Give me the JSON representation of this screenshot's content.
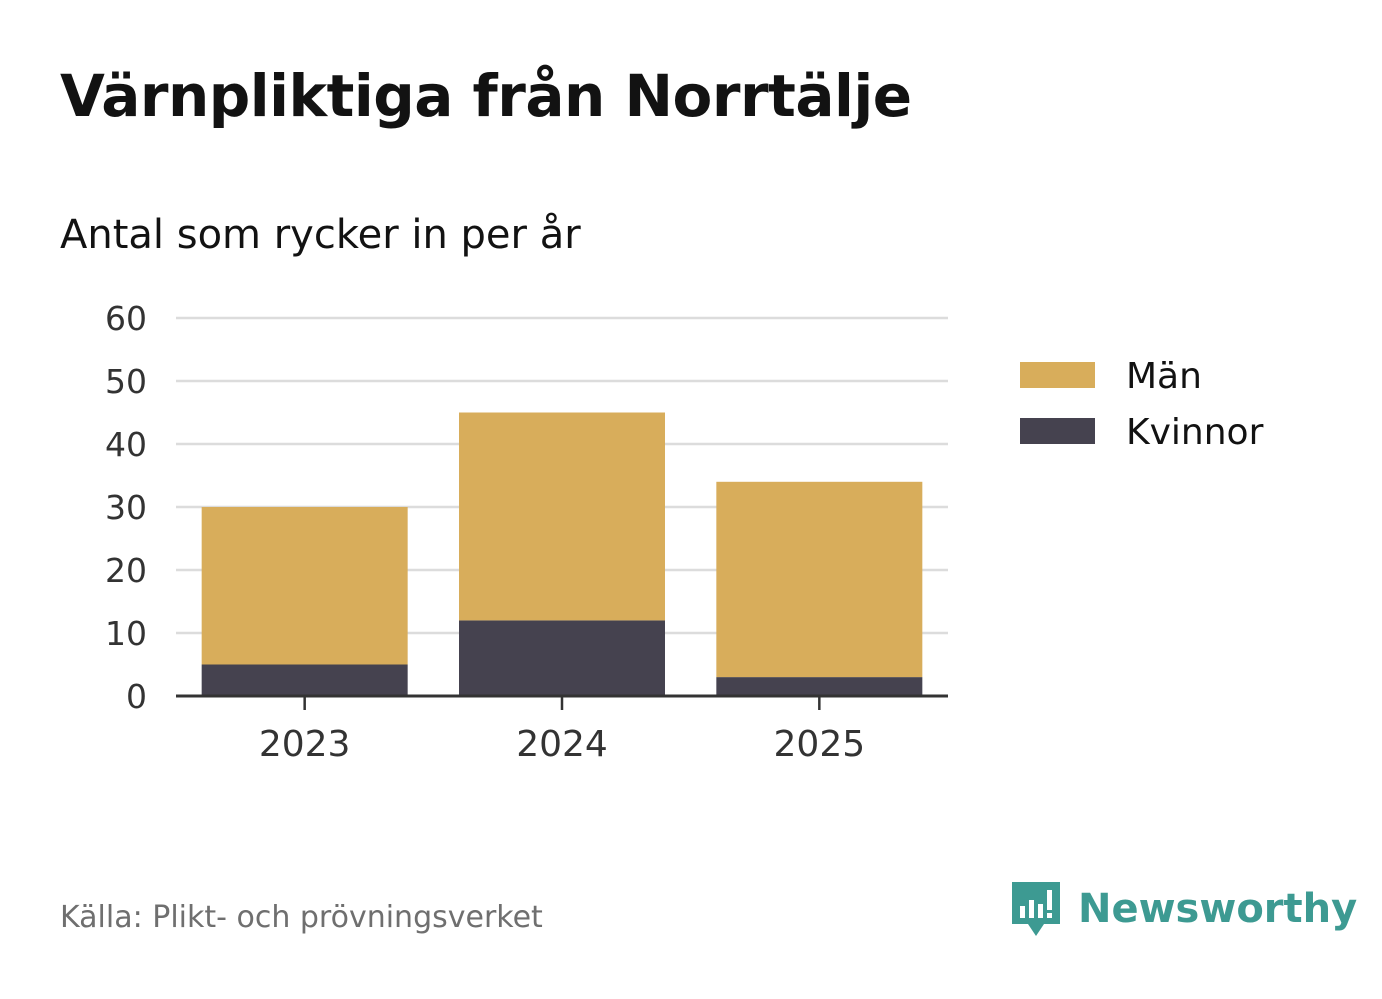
{
  "title": "Värnpliktiga från Norrtälje",
  "subtitle": "Antal som rycker in per år",
  "source": "Källa: Plikt- och prövningsverket",
  "brand": {
    "name": "Newsworthy",
    "icon": "newsworthy-logo-icon",
    "color": "#3d9a92"
  },
  "chart_data": {
    "type": "bar",
    "stacked": true,
    "categories": [
      "2023",
      "2024",
      "2025"
    ],
    "series": [
      {
        "name": "Kvinnor",
        "values": [
          5,
          12,
          3
        ],
        "color": "#45424f"
      },
      {
        "name": "Män",
        "values": [
          25,
          33,
          31
        ],
        "color": "#d8ad5b"
      }
    ],
    "ylim": [
      0,
      60
    ],
    "yticks": [
      "0",
      "10",
      "20",
      "30",
      "40",
      "50",
      "60"
    ],
    "grid": true,
    "legend": {
      "placement": "right",
      "entries": [
        {
          "label": "Män",
          "color": "#d8ad5b"
        },
        {
          "label": "Kvinnor",
          "color": "#45424f"
        }
      ]
    }
  }
}
